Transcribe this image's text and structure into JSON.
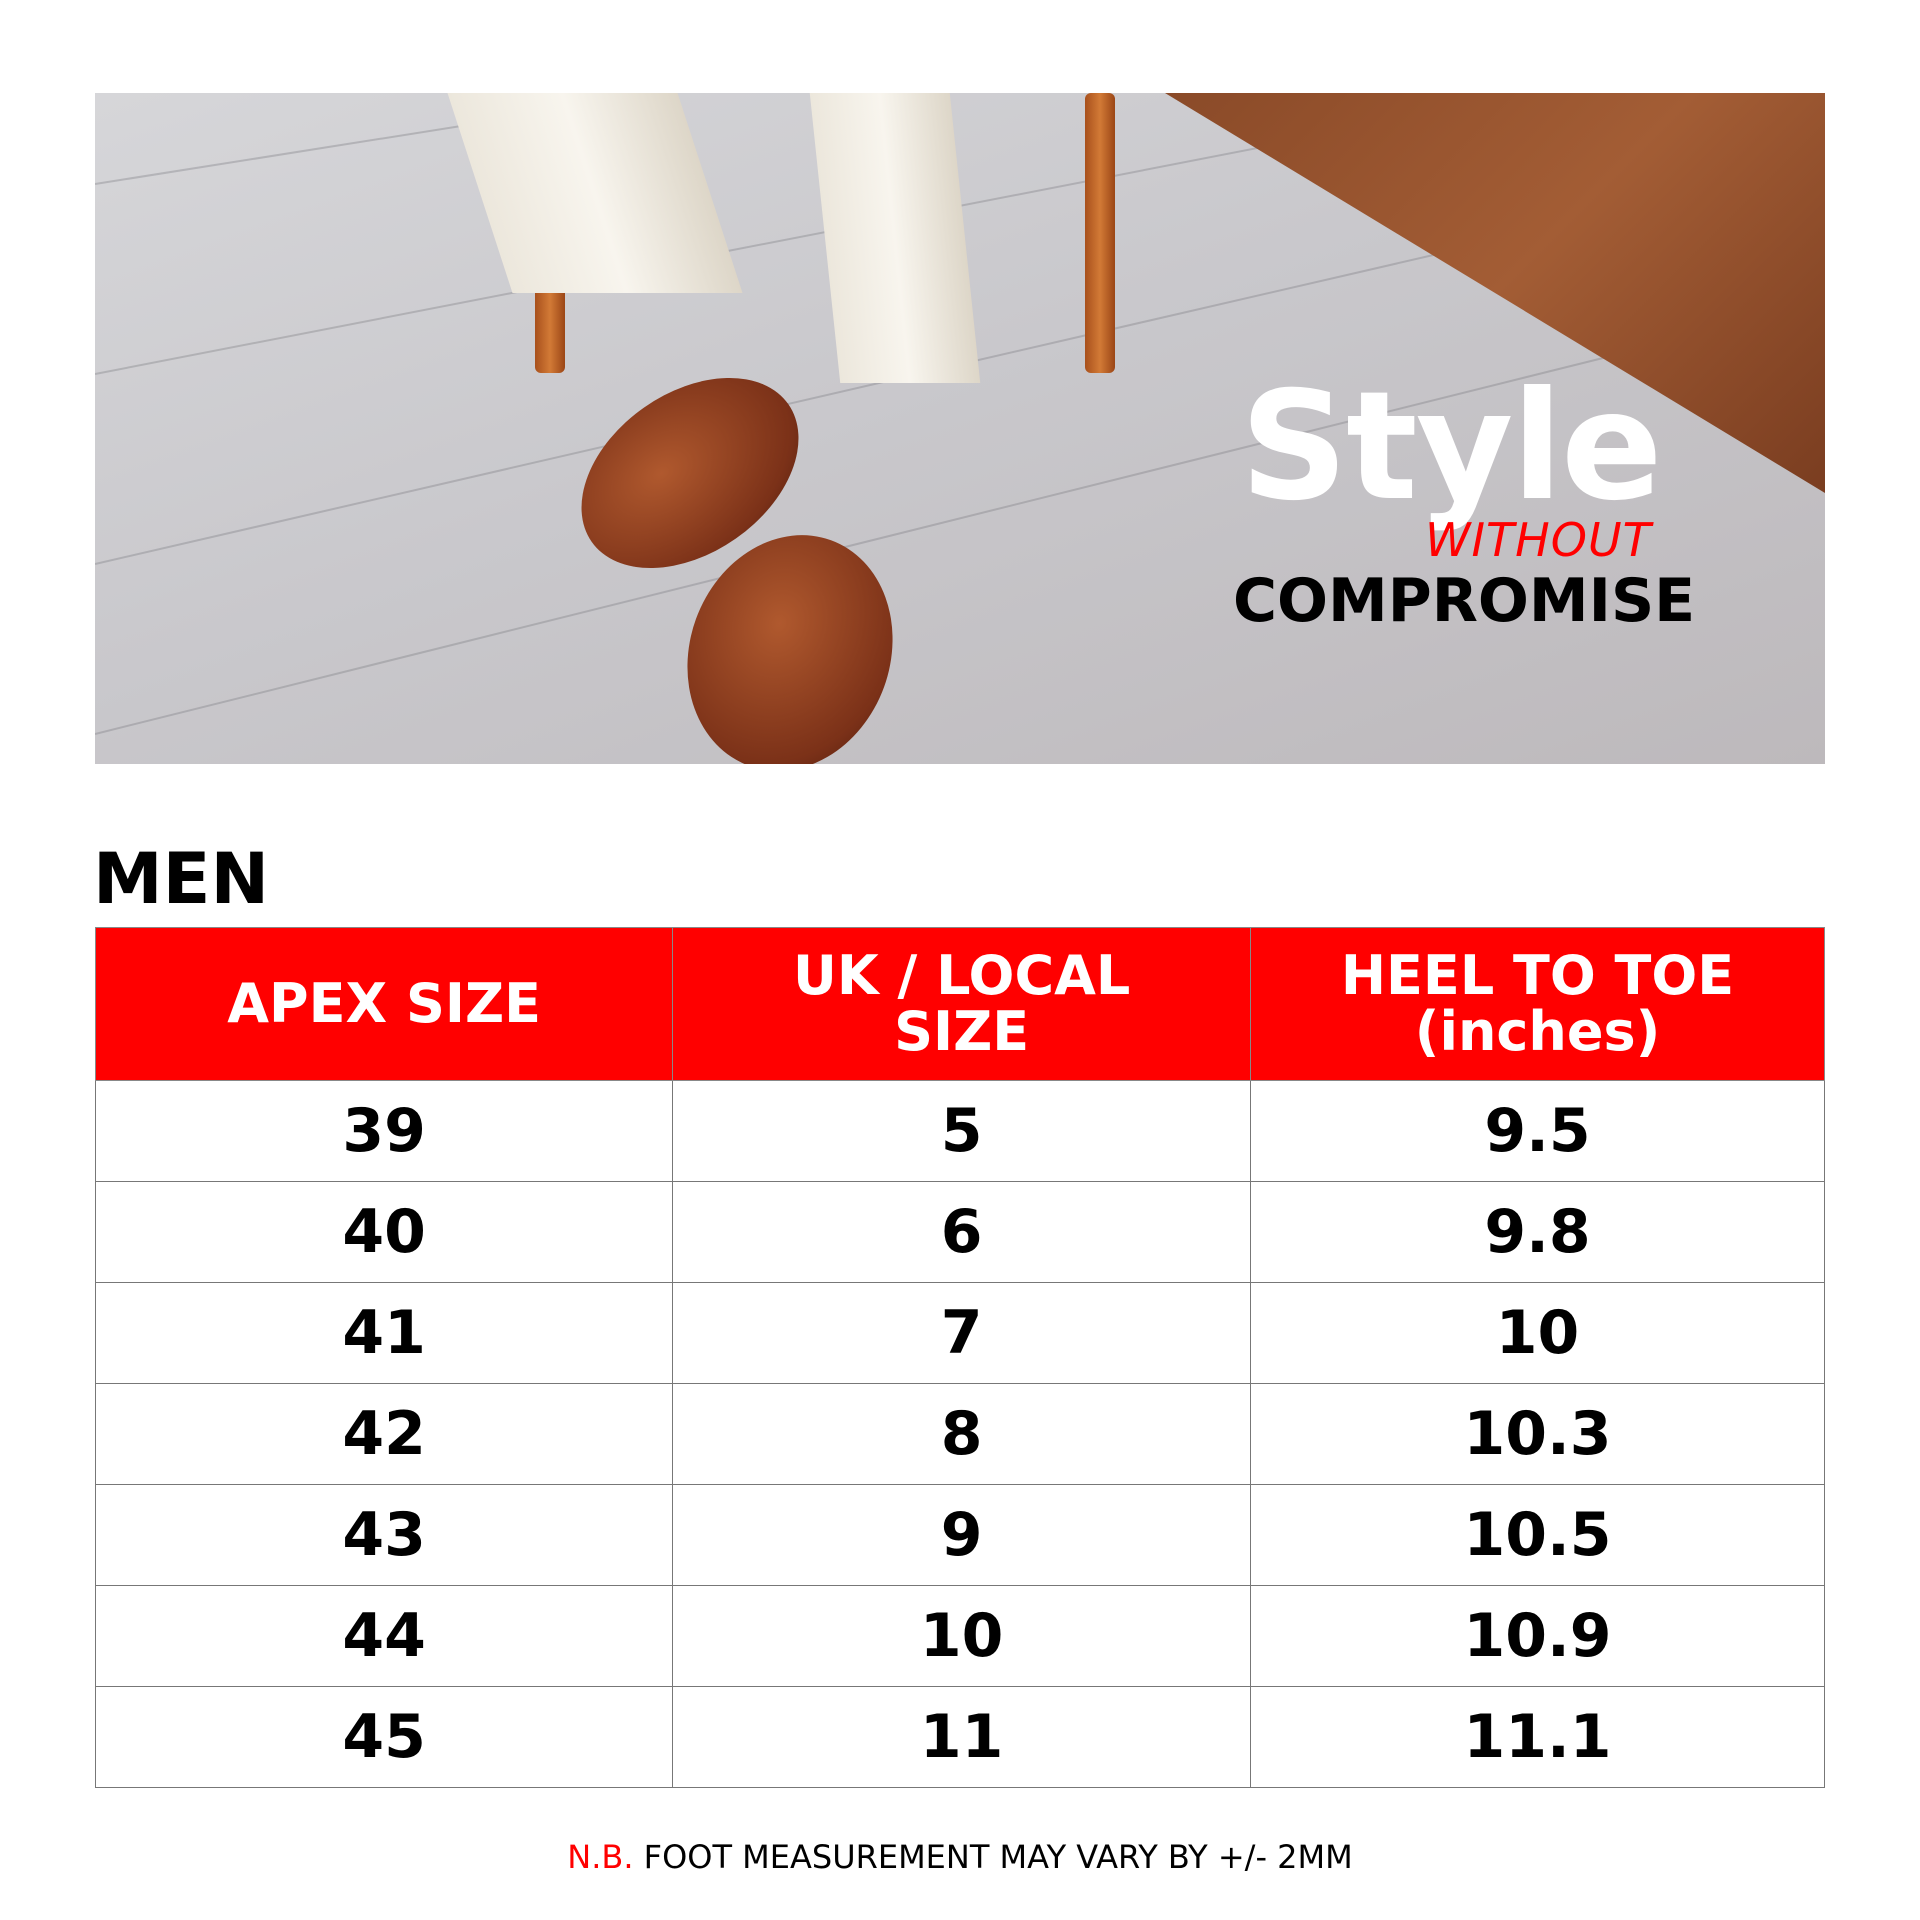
{
  "hero": {
    "headline": "Style",
    "headline_connector": "WITHOUT",
    "headline_tail": "COMPROMISE"
  },
  "section_title": "MEN",
  "table": {
    "headers": [
      "APEX SIZE",
      "UK / LOCAL SIZE",
      "HEEL TO TOE (inches)"
    ],
    "rows": [
      [
        "39",
        "5",
        "9.5"
      ],
      [
        "40",
        "6",
        "9.8"
      ],
      [
        "41",
        "7",
        "10"
      ],
      [
        "42",
        "8",
        "10.3"
      ],
      [
        "43",
        "9",
        "10.5"
      ],
      [
        "44",
        "10",
        "10.9"
      ],
      [
        "45",
        "11",
        "11.1"
      ]
    ]
  },
  "footnote": {
    "prefix": "N.B.",
    "text": "FOOT MEASUREMENT MAY VARY BY +/- 2MM"
  },
  "colors": {
    "accent": "#ff0000",
    "text": "#000000"
  }
}
